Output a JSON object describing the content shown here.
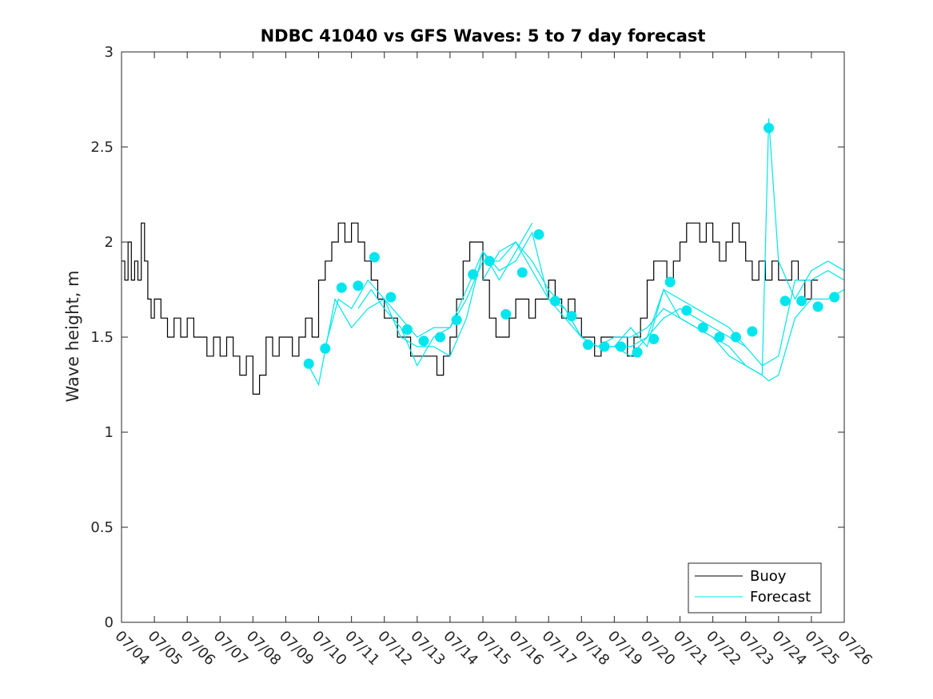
{
  "chart_data": {
    "type": "line",
    "title": "NDBC 41040 vs GFS Waves: 5 to 7 day forecast",
    "ylabel": "Wave height, m",
    "xlabel": "",
    "xlim_day": [
      4,
      26
    ],
    "ylim": [
      0,
      3
    ],
    "x_tick_labels": [
      "07/04",
      "07/05",
      "07/06",
      "07/07",
      "07/08",
      "07/09",
      "07/10",
      "07/11",
      "07/12",
      "07/13",
      "07/14",
      "07/15",
      "07/16",
      "07/17",
      "07/18",
      "07/19",
      "07/20",
      "07/21",
      "07/22",
      "07/23",
      "07/24",
      "07/25",
      "07/26"
    ],
    "y_ticks": [
      0,
      0.5,
      1,
      1.5,
      2,
      2.5,
      3
    ],
    "y_tick_labels": [
      "0",
      "0.5",
      "1",
      "1.5",
      "2",
      "2.5",
      "3"
    ],
    "grid": false,
    "legend_position": "bottom-right",
    "colors": {
      "buoy": "#000000",
      "forecast": "#00E5EE",
      "axis": "#262626"
    },
    "series": [
      {
        "name": "Buoy",
        "x": [
          4.0,
          4.1,
          4.2,
          4.3,
          4.4,
          4.5,
          4.6,
          4.7,
          4.8,
          4.9,
          5.0,
          5.2,
          5.4,
          5.6,
          5.8,
          6.0,
          6.2,
          6.4,
          6.6,
          6.8,
          7.0,
          7.2,
          7.4,
          7.6,
          7.8,
          7.9,
          8.0,
          8.1,
          8.2,
          8.4,
          8.6,
          8.8,
          9.0,
          9.2,
          9.4,
          9.6,
          9.8,
          10.0,
          10.2,
          10.4,
          10.6,
          10.8,
          11.0,
          11.2,
          11.4,
          11.6,
          11.8,
          12.0,
          12.2,
          12.4,
          12.6,
          12.8,
          13.0,
          13.2,
          13.4,
          13.6,
          13.8,
          14.0,
          14.2,
          14.4,
          14.6,
          14.8,
          15.0,
          15.2,
          15.4,
          15.6,
          15.8,
          16.0,
          16.2,
          16.4,
          16.6,
          16.8,
          17.0,
          17.2,
          17.4,
          17.6,
          17.8,
          18.0,
          18.2,
          18.4,
          18.6,
          18.8,
          19.0,
          19.2,
          19.4,
          19.6,
          19.8,
          20.0,
          20.2,
          20.4,
          20.6,
          20.8,
          21.0,
          21.2,
          21.4,
          21.6,
          21.8,
          22.0,
          22.2,
          22.4,
          22.6,
          22.8,
          23.0,
          23.2,
          23.4,
          23.6,
          23.8,
          24.0,
          24.2,
          24.4,
          24.6,
          24.8,
          25.0,
          25.2
        ],
        "y": [
          1.9,
          1.8,
          2.0,
          1.8,
          1.9,
          1.8,
          2.1,
          1.9,
          1.7,
          1.6,
          1.7,
          1.6,
          1.5,
          1.6,
          1.5,
          1.6,
          1.5,
          1.5,
          1.4,
          1.5,
          1.4,
          1.5,
          1.4,
          1.3,
          1.4,
          1.4,
          1.2,
          1.2,
          1.3,
          1.5,
          1.4,
          1.5,
          1.5,
          1.4,
          1.5,
          1.6,
          1.5,
          1.8,
          1.9,
          2.0,
          2.1,
          2.0,
          2.1,
          2.0,
          1.9,
          1.8,
          1.7,
          1.6,
          1.6,
          1.5,
          1.5,
          1.4,
          1.4,
          1.4,
          1.4,
          1.3,
          1.4,
          1.5,
          1.7,
          1.9,
          2.0,
          2.0,
          1.8,
          1.6,
          1.5,
          1.5,
          1.6,
          1.7,
          1.7,
          1.6,
          1.7,
          1.7,
          1.8,
          1.7,
          1.6,
          1.7,
          1.6,
          1.5,
          1.5,
          1.4,
          1.5,
          1.5,
          1.5,
          1.5,
          1.4,
          1.5,
          1.6,
          1.8,
          1.9,
          1.9,
          1.8,
          1.9,
          2.0,
          2.1,
          2.1,
          2.0,
          2.1,
          2.0,
          1.9,
          2.0,
          2.1,
          2.0,
          1.9,
          1.8,
          1.9,
          1.8,
          1.9,
          1.8,
          1.8,
          1.9,
          1.8,
          1.7,
          1.8,
          1.8
        ]
      },
      {
        "name": "Forecast",
        "runs": [
          {
            "x": [
              9.7,
              10.0,
              10.5,
              11.0,
              11.5,
              12.0,
              12.5,
              13.0,
              13.5,
              14.0,
              14.5,
              15.0,
              15.5,
              16.0,
              16.5
            ],
            "y": [
              1.35,
              1.25,
              1.7,
              1.55,
              1.65,
              1.7,
              1.5,
              1.45,
              1.45,
              1.4,
              1.6,
              1.95,
              1.8,
              1.95,
              2.1
            ]
          },
          {
            "x": [
              10.2,
              10.6,
              11.0,
              11.5,
              12.0,
              12.5,
              13.0,
              13.5,
              14.0,
              14.5,
              15.0,
              15.5,
              16.0,
              16.5,
              17.0,
              17.5,
              18.0,
              18.5,
              19.0,
              19.5,
              20.0,
              20.5,
              21.0
            ],
            "y": [
              1.45,
              1.7,
              1.65,
              1.8,
              1.7,
              1.6,
              1.5,
              1.55,
              1.55,
              1.7,
              1.9,
              1.9,
              2.0,
              1.9,
              1.75,
              1.65,
              1.5,
              1.45,
              1.5,
              1.5,
              1.55,
              1.65,
              1.6
            ]
          },
          {
            "x": [
              11.2,
              11.6,
              12.0,
              12.5,
              13.0,
              13.5,
              14.0,
              14.5,
              15.0,
              15.5,
              16.0,
              16.5,
              17.0,
              17.5,
              18.0,
              18.5,
              19.0,
              19.5,
              20.0,
              20.5,
              21.0,
              21.5,
              22.0,
              22.5,
              23.0
            ],
            "y": [
              1.65,
              1.75,
              1.65,
              1.55,
              1.35,
              1.5,
              1.55,
              1.75,
              1.95,
              1.85,
              1.9,
              2.05,
              1.7,
              1.6,
              1.5,
              1.45,
              1.45,
              1.45,
              1.5,
              1.6,
              1.65,
              1.6,
              1.55,
              1.5,
              1.45
            ]
          },
          {
            "x": [
              15.0,
              15.5,
              16.0,
              16.5,
              17.0,
              17.5,
              18.0,
              18.5,
              19.0,
              19.5,
              20.0,
              20.5,
              21.0,
              21.5,
              22.0,
              22.5,
              23.0,
              23.5,
              24.0,
              24.5,
              25.0,
              25.5,
              26.0
            ],
            "y": [
              1.8,
              1.95,
              2.0,
              1.85,
              1.7,
              1.65,
              1.5,
              1.45,
              1.45,
              1.55,
              1.45,
              1.75,
              1.7,
              1.65,
              1.6,
              1.55,
              1.45,
              1.35,
              1.4,
              1.8,
              1.8,
              1.85,
              1.8
            ]
          },
          {
            "x": [
              19.0,
              19.5,
              20.0,
              20.5,
              21.0,
              21.5,
              22.0,
              22.5,
              23.0,
              23.5,
              23.7,
              24.0,
              24.5,
              25.0,
              25.5,
              26.0
            ],
            "y": [
              1.45,
              1.4,
              1.5,
              1.75,
              1.6,
              1.55,
              1.5,
              1.45,
              1.35,
              1.3,
              2.65,
              1.9,
              1.7,
              1.85,
              1.9,
              1.85
            ]
          },
          {
            "x": [
              21.0,
              21.5,
              22.0,
              22.5,
              23.0,
              23.5,
              23.7,
              24.0,
              24.5,
              25.0,
              25.5,
              26.0
            ],
            "y": [
              1.6,
              1.55,
              1.5,
              1.4,
              1.35,
              1.3,
              1.27,
              1.3,
              1.6,
              1.7,
              1.7,
              1.75
            ]
          }
        ],
        "markers_x": [
          9.7,
          10.2,
          10.7,
          11.2,
          11.7,
          12.2,
          12.7,
          13.2,
          13.7,
          14.2,
          14.7,
          15.2,
          15.7,
          16.2,
          16.7,
          17.2,
          17.7,
          18.2,
          18.7,
          19.2,
          19.7,
          20.2,
          20.7,
          21.2,
          21.7,
          22.2,
          22.7,
          23.2,
          23.7,
          24.2,
          24.7,
          25.2,
          25.7
        ],
        "markers_y": [
          1.36,
          1.44,
          1.76,
          1.77,
          1.92,
          1.71,
          1.54,
          1.48,
          1.5,
          1.59,
          1.83,
          1.9,
          1.62,
          1.84,
          2.04,
          1.69,
          1.61,
          1.46,
          1.45,
          1.45,
          1.42,
          1.49,
          1.79,
          1.64,
          1.55,
          1.5,
          1.5,
          1.53,
          2.6,
          1.69,
          1.69,
          1.66,
          1.71
        ]
      }
    ]
  }
}
